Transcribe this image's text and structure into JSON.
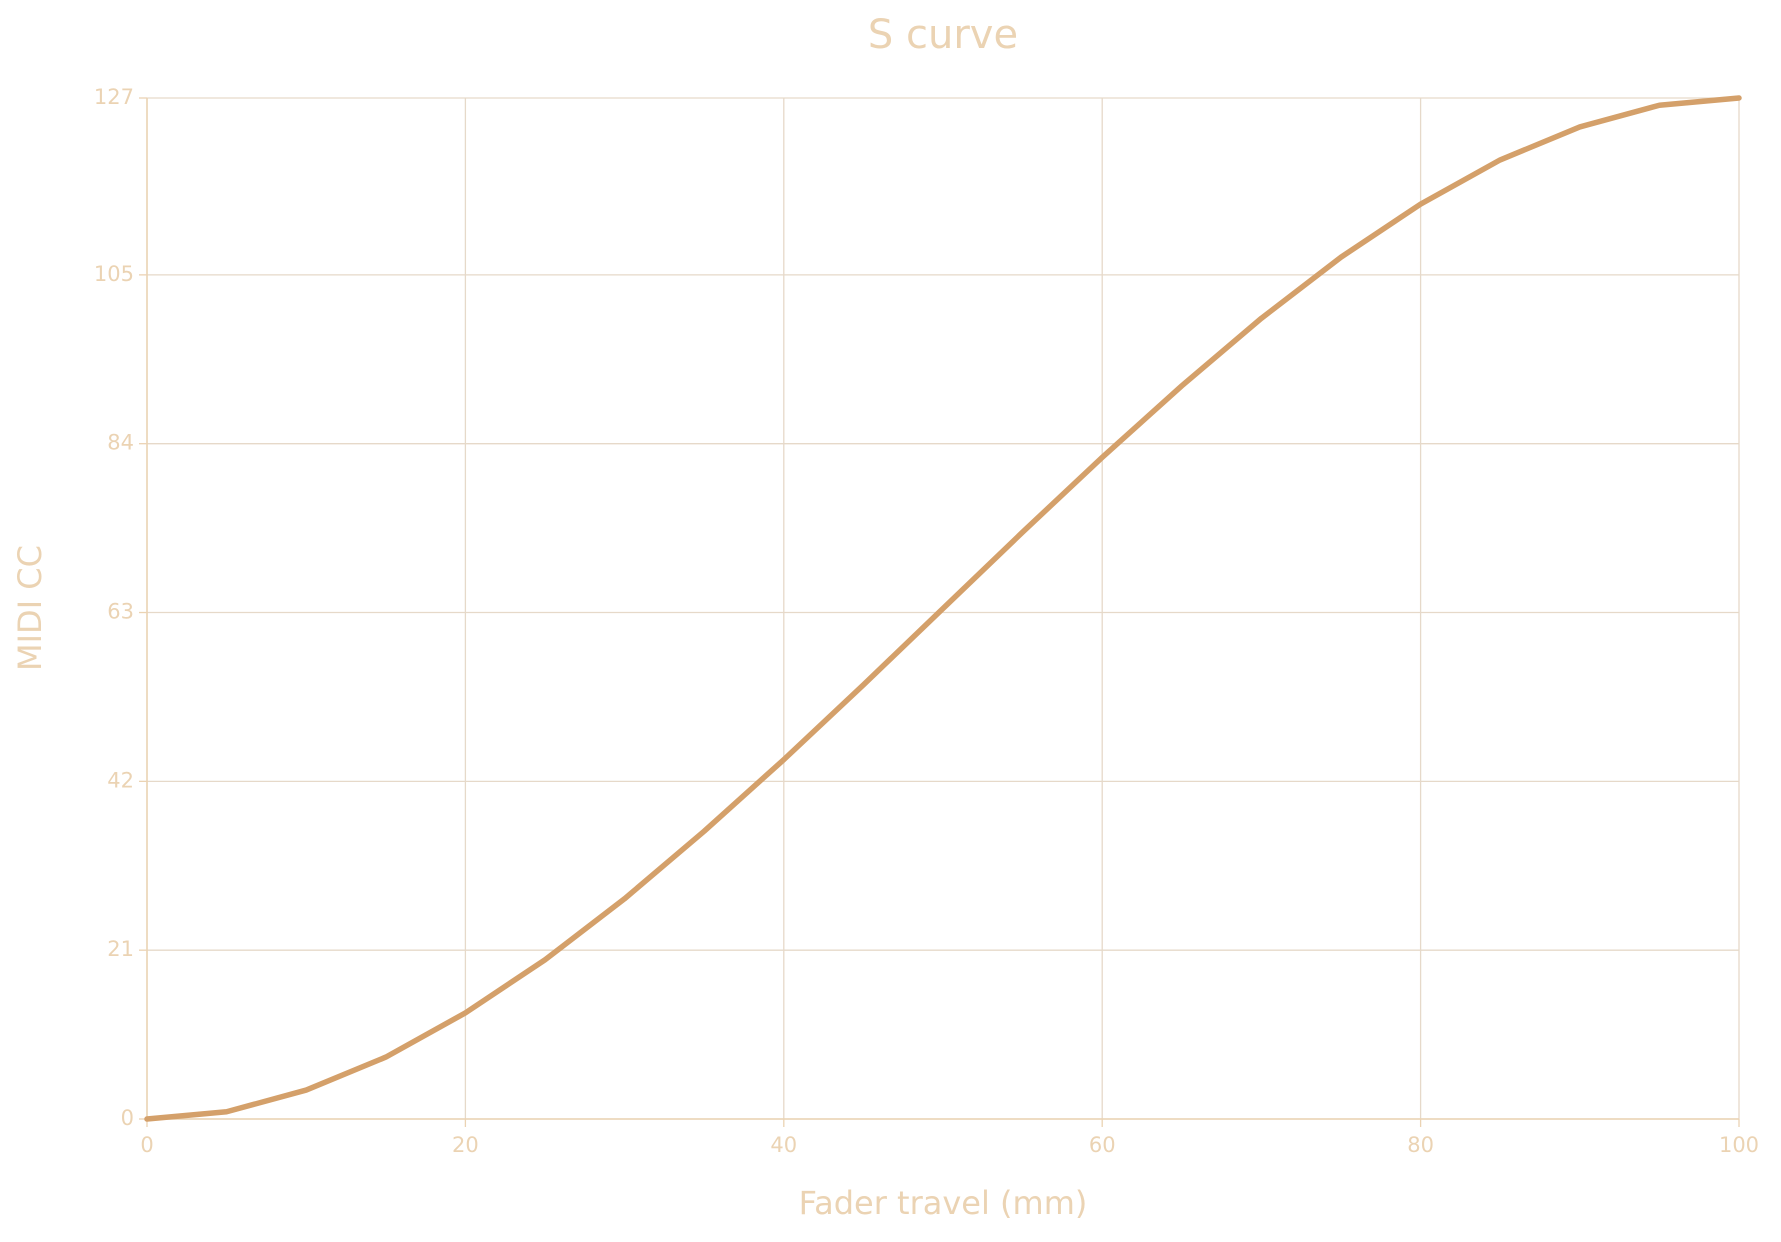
{
  "chart_data": {
    "type": "line",
    "title": "S curve",
    "x_label": "Fader travel (mm)",
    "y_label": "MIDI CC",
    "x": [
      0,
      5,
      10,
      15,
      20,
      25,
      30,
      35,
      40,
      45,
      50,
      55,
      60,
      65,
      70,
      75,
      80,
      85,
      90,
      95,
      100
    ],
    "series": [
      {
        "color": "#d4a06a",
        "values": [
          0,
          0.9,
          3.6,
          7.7,
          13.2,
          19.8,
          27.4,
          35.8,
          44.7,
          54.0,
          63.5,
          73.0,
          82.3,
          91.2,
          99.6,
          107.2,
          113.8,
          119.3,
          123.4,
          126.1,
          127
        ]
      }
    ],
    "xlim": [
      0,
      100
    ],
    "xticks": [
      0,
      20,
      40,
      60,
      80,
      100
    ],
    "ylim": [
      0,
      127
    ],
    "yticks": [
      0,
      21,
      42,
      63,
      84,
      105,
      127
    ],
    "grid": true
  }
}
